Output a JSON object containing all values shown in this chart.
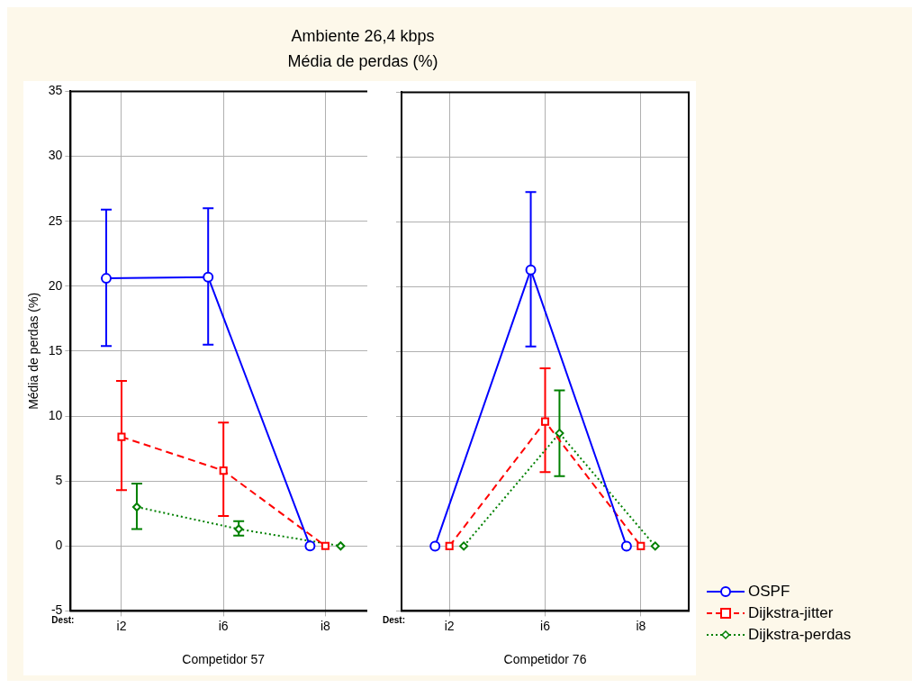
{
  "chart_data": [
    {
      "type": "line",
      "title": "Ambiente 26,4 kbps",
      "subtitle": "Média de perdas (%)",
      "xlabel": "Competidor 57",
      "ylabel": "Média de perdas (%)",
      "annotations": [
        "Dest:"
      ],
      "categories": [
        "i2",
        "i6",
        "i8"
      ],
      "series": [
        {
          "color": "#0000ff",
          "marker": "circle",
          "line_style": "solid",
          "values": [
            20.6,
            20.7,
            0
          ],
          "errors": [
            [
              15.4,
              25.9
            ],
            [
              15.5,
              26.0
            ],
            null
          ]
        },
        {
          "color": "#ff0000",
          "marker": "square",
          "line_style": "dashed",
          "values": [
            8.4,
            5.8,
            0
          ],
          "errors": [
            [
              4.3,
              12.7
            ],
            [
              2.3,
              9.5
            ],
            null
          ]
        },
        {
          "color": "#008000",
          "marker": "diamond",
          "line_style": "dotted",
          "values": [
            3.0,
            1.3,
            0
          ],
          "errors": [
            [
              1.3,
              4.8
            ],
            [
              0.8,
              1.9
            ],
            null
          ]
        }
      ],
      "ylim": [
        -5,
        35
      ],
      "yticks": [
        -5,
        0,
        5,
        10,
        15,
        20,
        25,
        30,
        35
      ],
      "grid": true,
      "legend": false
    },
    {
      "type": "line",
      "xlabel": "Competidor 76",
      "annotations": [
        "Dest:"
      ],
      "categories": [
        "i2",
        "i6",
        "i8"
      ],
      "series": [
        {
          "name": "OSPF",
          "color": "#0000ff",
          "marker": "circle",
          "line_style": "solid",
          "values": [
            0,
            21.3,
            0
          ],
          "errors": [
            null,
            [
              15.4,
              27.3
            ],
            null
          ]
        },
        {
          "name": "Dijkstra-jitter",
          "color": "#ff0000",
          "marker": "square",
          "line_style": "dashed",
          "values": [
            0,
            9.6,
            0
          ],
          "errors": [
            null,
            [
              5.7,
              13.7
            ],
            null
          ]
        },
        {
          "name": "Dijkstra-perdas",
          "color": "#008000",
          "marker": "diamond",
          "line_style": "dotted",
          "values": [
            0,
            8.7,
            0
          ],
          "errors": [
            null,
            [
              5.4,
              12.0
            ],
            null
          ]
        }
      ],
      "ylim": [
        -5,
        35
      ],
      "yticks": [
        -5,
        0,
        5,
        10,
        15,
        20,
        25,
        30,
        35
      ],
      "grid": true,
      "legend": "bottom right",
      "tick_labels": "x"
    }
  ]
}
